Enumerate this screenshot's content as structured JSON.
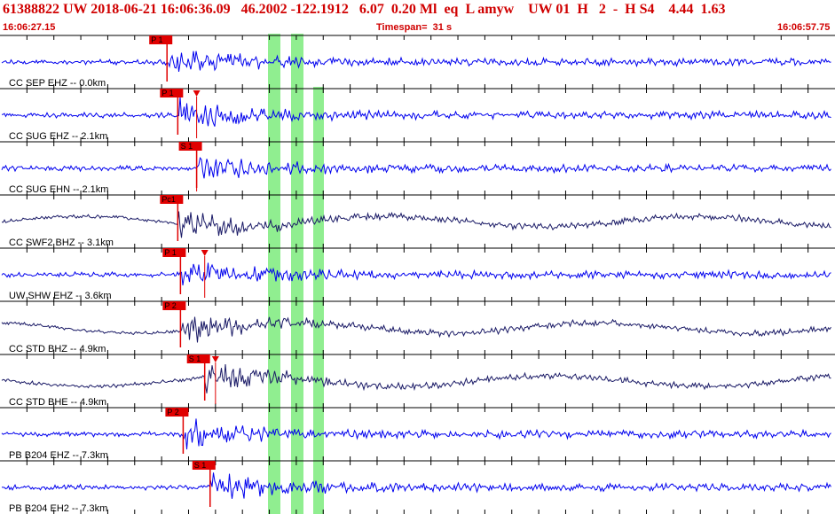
{
  "header": {
    "title": "61388822 UW 2018-06-21 16:06:36.09   46.2002 -122.1912   6.07  0.20 Ml  eq  L amyw    UW 01  H   2  -  H S4    4.44  1.63",
    "start_time": "16:06:27.15",
    "timespan": "Timespan=  31 s",
    "end_time": "16:06:57.75"
  },
  "colors": {
    "header_red": "#d00000",
    "pick_red": "#e00000",
    "phase_band": "#90ee90",
    "trace_blue": "#0000ee",
    "trace_dark": "#1a1a66",
    "label": "#000000"
  },
  "traces": [
    {
      "label": "CC SEP EHZ -- 0.0km",
      "color": "blue",
      "picks": [
        {
          "text": "P 1",
          "time": 6.2
        }
      ],
      "s_time": null
    },
    {
      "label": "CC SUG EHZ -- 2.1km",
      "color": "blue",
      "picks": [
        {
          "text": "P 1",
          "time": 6.6
        }
      ],
      "s_time": 7.3
    },
    {
      "label": "CC SUG EHN -- 2.1km",
      "color": "blue",
      "picks": [
        {
          "text": "S 1",
          "time": 7.3
        }
      ],
      "s_time": 7.3
    },
    {
      "label": "CC SWF2 BHZ -- 3.1km",
      "color": "dark",
      "picks": [
        {
          "text": "Pc1",
          "time": 6.6
        }
      ],
      "s_time": null
    },
    {
      "label": "UW SHW EHZ -- 3.6km",
      "color": "blue",
      "picks": [
        {
          "text": "P 1",
          "time": 6.7
        }
      ],
      "s_time": 7.6
    },
    {
      "label": "CC STD BHZ -- 4.9km",
      "color": "dark",
      "picks": [
        {
          "text": "P 2",
          "time": 6.7
        }
      ],
      "s_time": null
    },
    {
      "label": "CC STD BHE -- 4.9km",
      "color": "dark",
      "picks": [
        {
          "text": "S 1",
          "time": 7.6
        }
      ],
      "s_time": 8.0
    },
    {
      "label": "PB B204 EHZ -- 7.3km",
      "color": "blue",
      "picks": [
        {
          "text": "P 2",
          "time": 6.8
        }
      ],
      "s_time": null
    },
    {
      "label": "PB B204 EH2 -- 7.3km",
      "color": "blue",
      "picks": [
        {
          "text": "S 1",
          "time": 7.8
        }
      ],
      "s_time": null
    }
  ]
}
